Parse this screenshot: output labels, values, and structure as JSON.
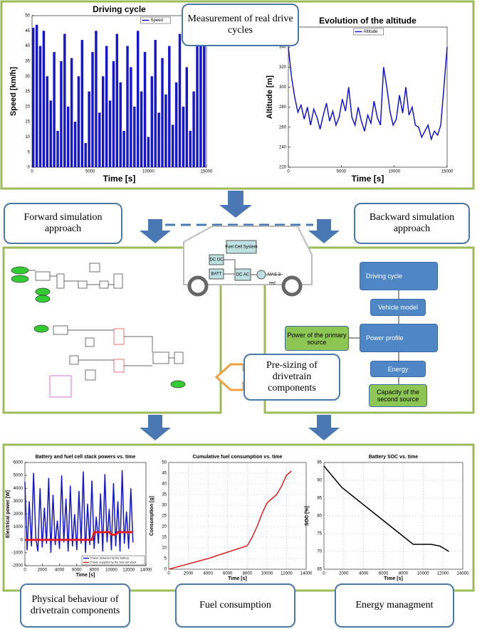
{
  "callouts": {
    "measurement": "Measurement of real drive cycles",
    "forward": "Forward simulation approach",
    "backward": "Backward simulation approach",
    "presizing": "Pre-sizing of drivetrain components",
    "physical": "Physical behaviour of drivetrain components",
    "fuel": "Fuel consumption",
    "energy": "Energy managment"
  },
  "vehicle": {
    "fuel_cell": "Fuel Cell System",
    "dcdc": "DC DC",
    "batt": "BATT",
    "dcac": "DC AC",
    "motor": "MAS 3~",
    "red": "red"
  },
  "backward_flow": {
    "driving_cycle": "Driving cycle",
    "vehicle_model": "Vehicle model",
    "power_profile": "Power profile",
    "energy": "Energy",
    "primary": "Power of the primary source",
    "second": "Capacity of the second source"
  },
  "chart_data": [
    {
      "type": "bar",
      "title": "Driving cycle",
      "x_label": "Time [s]",
      "y_label": "Speed [km/h]",
      "xlim": [
        0,
        15000
      ],
      "ylim": [
        0,
        50
      ],
      "xticks": [
        0,
        5000,
        10000,
        15000
      ],
      "yticks": [
        0,
        5,
        10,
        15,
        20,
        25,
        30,
        35,
        40,
        45,
        50
      ],
      "grid": false,
      "x": [
        0,
        300,
        600,
        900,
        1200,
        1500,
        1800,
        2100,
        2400,
        2700,
        3000,
        3300,
        3600,
        3900,
        4200,
        4500,
        4800,
        5100,
        5400,
        5700,
        6000,
        6300,
        6600,
        6900,
        7200,
        7500,
        7800,
        8100,
        8400,
        8700,
        9000,
        9300,
        9600,
        9900,
        10200,
        10500,
        10800,
        11100,
        11400,
        11700,
        12000,
        12300,
        12600,
        12900,
        13200,
        13500,
        13800,
        14100,
        14400,
        14700
      ],
      "series": [
        {
          "name": "Speed",
          "color": "#1414d8",
          "values": [
            46,
            47,
            40,
            45,
            30,
            22,
            38,
            12,
            35,
            44,
            20,
            36,
            15,
            30,
            42,
            8,
            25,
            38,
            45,
            18,
            30,
            40,
            22,
            35,
            44,
            28,
            12,
            40,
            33,
            20,
            45,
            25,
            38,
            10,
            30,
            42,
            18,
            36,
            24,
            40,
            14,
            28,
            44,
            20,
            33,
            12,
            25,
            40,
            45,
            46
          ]
        }
      ]
    },
    {
      "type": "line",
      "title": "Evolution of the altitude",
      "x_label": "Time [s]",
      "y_label": "Altitude [m]",
      "xlim": [
        0,
        15000
      ],
      "ylim": [
        220,
        360
      ],
      "xticks": [
        0,
        5000,
        10000,
        15000
      ],
      "yticks": [
        220,
        240,
        260,
        280,
        300,
        320,
        340,
        360
      ],
      "grid": false,
      "x": [
        0,
        300,
        600,
        900,
        1200,
        1500,
        1800,
        2100,
        2400,
        2700,
        3000,
        3300,
        3600,
        3900,
        4200,
        4500,
        4800,
        5100,
        5400,
        5700,
        6000,
        6300,
        6600,
        6900,
        7200,
        7500,
        7800,
        8100,
        8400,
        8700,
        9000,
        9300,
        9600,
        9900,
        10200,
        10500,
        10800,
        11100,
        11400,
        11700,
        12000,
        12300,
        12600,
        12900,
        13200,
        13500,
        13800,
        14100,
        14400,
        14700,
        15000
      ],
      "series": [
        {
          "name": "Altitude",
          "color": "#1414d8",
          "values": [
            340,
            310,
            290,
            275,
            282,
            268,
            280,
            262,
            278,
            270,
            258,
            272,
            284,
            266,
            276,
            262,
            270,
            288,
            276,
            300,
            270,
            262,
            280,
            266,
            256,
            272,
            264,
            286,
            270,
            262,
            320,
            300,
            276,
            262,
            268,
            292,
            274,
            300,
            272,
            280,
            262,
            260,
            250,
            256,
            262,
            248,
            256,
            252,
            262,
            300,
            340
          ]
        }
      ]
    },
    {
      "type": "line",
      "title": "Battery and fuel cell stack powers vs. time",
      "x_label": "Time [s]",
      "y_label": "Electrical power [W]",
      "xlim": [
        0,
        14000
      ],
      "ylim": [
        -2000,
        6000
      ],
      "xticks": [
        0,
        2000,
        4000,
        6000,
        8000,
        10000,
        12000,
        14000
      ],
      "yticks": [
        -2000,
        -1000,
        0,
        1000,
        2000,
        3000,
        4000,
        5000,
        6000
      ],
      "grid": false,
      "x": [
        0,
        250,
        500,
        750,
        1000,
        1250,
        1500,
        1750,
        2000,
        2250,
        2500,
        2750,
        3000,
        3250,
        3500,
        3750,
        4000,
        4250,
        4500,
        4750,
        5000,
        5250,
        5500,
        5750,
        6000,
        6250,
        6500,
        6750,
        7000,
        7250,
        7500,
        7750,
        8000,
        8250,
        8500,
        8750,
        9000,
        9250,
        9500,
        9750,
        10000,
        10250,
        10500,
        10750,
        11000,
        11250,
        11500,
        11750,
        12000,
        12250,
        12500
      ],
      "series": [
        {
          "name": "Power delivered by the battery",
          "color": "#1414d8",
          "values": [
            4500,
            -800,
            3000,
            -500,
            5200,
            200,
            -900,
            4000,
            -600,
            2500,
            -300,
            4800,
            -1000,
            3500,
            -400,
            1500,
            -700,
            5000,
            -200,
            3200,
            -900,
            4200,
            -500,
            2000,
            -800,
            3800,
            -300,
            5300,
            -1000,
            2800,
            -400,
            4600,
            -700,
            1800,
            -300,
            3600,
            -900,
            5100,
            -200,
            2400,
            -800,
            4400,
            -500,
            3000,
            -900,
            5400,
            -300,
            2200,
            -700,
            4000,
            -200
          ]
        },
        {
          "name": "Power supplied by the fuel cell stack",
          "color": "#e02020",
          "values": [
            0,
            0,
            0,
            0,
            0,
            0,
            0,
            0,
            0,
            0,
            0,
            0,
            0,
            0,
            0,
            0,
            0,
            0,
            0,
            0,
            0,
            0,
            0,
            0,
            0,
            0,
            0,
            0,
            0,
            0,
            0,
            0,
            600,
            600,
            600,
            600,
            600,
            600,
            600,
            600,
            400,
            400,
            400,
            600,
            600,
            600,
            600,
            600,
            600,
            600,
            600
          ]
        }
      ]
    },
    {
      "type": "line",
      "title": "Cumulative fuel consumption vs. time",
      "x_label": "Time [s]",
      "y_label": "Consumption [g]",
      "xlim": [
        0,
        14000
      ],
      "ylim": [
        0,
        50
      ],
      "xticks": [
        0,
        2000,
        4000,
        6000,
        8000,
        10000,
        12000,
        14000
      ],
      "yticks": [
        0,
        5,
        10,
        15,
        20,
        25,
        30,
        35,
        40,
        45,
        50
      ],
      "grid": true,
      "x": [
        0,
        2000,
        4000,
        6000,
        8000,
        8500,
        9000,
        9500,
        10000,
        10500,
        11000,
        11500,
        12000,
        12500
      ],
      "series": [
        {
          "name": "Fuel",
          "color": "#e02020",
          "values": [
            0,
            2.5,
            5,
            8,
            11,
            15,
            20,
            26,
            31,
            33,
            35,
            39,
            44,
            46
          ]
        }
      ]
    },
    {
      "type": "line",
      "title": "Battery SOC vs. time",
      "x_label": "Time [s]",
      "y_label": "SOC [%]",
      "xlim": [
        0,
        14000
      ],
      "ylim": [
        65,
        95
      ],
      "xticks": [
        0,
        2000,
        4000,
        6000,
        8000,
        10000,
        12000,
        14000
      ],
      "yticks": [
        65,
        70,
        75,
        80,
        85,
        90,
        95
      ],
      "grid": true,
      "x": [
        0,
        900,
        1800,
        2700,
        3600,
        4500,
        5400,
        6300,
        7200,
        8100,
        9000,
        9900,
        10800,
        11700,
        12600
      ],
      "series": [
        {
          "name": "SOC",
          "color": "#000000",
          "values": [
            94,
            91,
            88,
            86,
            84,
            82,
            80,
            78,
            76,
            74,
            72,
            72,
            72,
            71.5,
            70
          ]
        }
      ]
    }
  ]
}
